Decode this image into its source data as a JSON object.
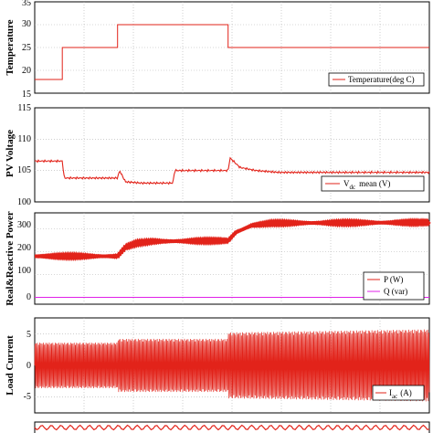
{
  "chart_data": [
    {
      "type": "line",
      "ylabel": "Temperature",
      "ylim": [
        15,
        35
      ],
      "yticks": [
        "35",
        "30",
        "25",
        "20",
        "15"
      ],
      "grid": true,
      "legend": "bottom-right",
      "series": [
        {
          "name": "Temperature(deg C)",
          "color": "#e2231a",
          "x": [
            0,
            0.07,
            0.07,
            0.21,
            0.21,
            0.49,
            0.49,
            1.0
          ],
          "y": [
            18,
            18,
            25,
            25,
            30,
            30,
            25,
            25
          ]
        }
      ]
    },
    {
      "type": "line",
      "ylabel": "PV Voltage",
      "ylim": [
        100,
        115
      ],
      "yticks": [
        "115",
        "110",
        "105",
        "100"
      ],
      "grid": true,
      "legend": "bottom-right",
      "series": [
        {
          "name": "V",
          "name_subscript": "dc",
          "name_suffix": "mean (V)",
          "color": "#e2231a",
          "x": [
            0,
            0.07,
            0.075,
            0.21,
            0.215,
            0.23,
            0.27,
            0.35,
            0.355,
            0.49,
            0.495,
            0.52,
            0.56,
            0.62,
            0.7,
            1.0
          ],
          "y": [
            106.5,
            106.5,
            103.8,
            103.8,
            105.0,
            103.2,
            103.0,
            103.0,
            105.0,
            105.0,
            107.0,
            105.5,
            105.0,
            104.7,
            104.7,
            104.7
          ]
        }
      ]
    },
    {
      "type": "line",
      "ylabel": "Real&Reactive Power",
      "ylim": [
        -30,
        370
      ],
      "yticks": [
        "300",
        "200",
        "100",
        "0"
      ],
      "grid": true,
      "legend": "bottom-right",
      "series": [
        {
          "name": "P (W)",
          "color": "#e2231a",
          "x": [
            0,
            0.21,
            0.23,
            0.26,
            0.3,
            0.49,
            0.51,
            0.55,
            0.6,
            1.0
          ],
          "y": [
            180,
            180,
            220,
            238,
            245,
            248,
            285,
            315,
            325,
            328
          ]
        },
        {
          "name": "Q (var)",
          "color": "#e020e8",
          "x": [
            0,
            1.0
          ],
          "y": [
            0,
            0
          ]
        }
      ]
    },
    {
      "type": "line",
      "ylabel": "Load Current",
      "ylim": [
        -7.5,
        7.5
      ],
      "yticks": [
        "5",
        "0",
        "-5"
      ],
      "grid": true,
      "legend": "bottom-right",
      "series": [
        {
          "name": "I",
          "name_subscript": "ac",
          "name_suffix": "(A)",
          "color": "#e2231a",
          "x": [
            0,
            0.21,
            0.21,
            0.49,
            0.49,
            1.0
          ],
          "amplitude": [
            3.6,
            3.6,
            4.2,
            4.2,
            5.2,
            5.7
          ]
        }
      ]
    }
  ]
}
